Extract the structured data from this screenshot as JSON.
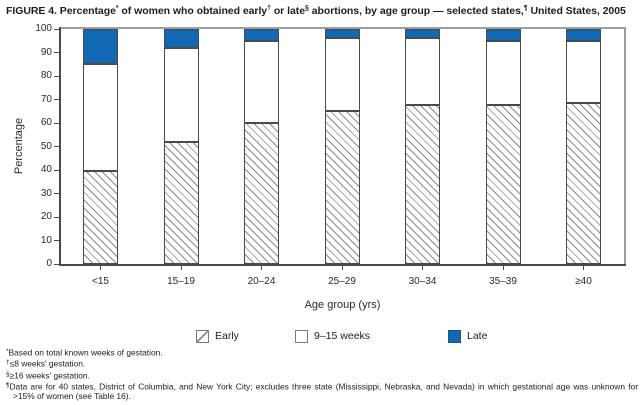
{
  "figure": {
    "title_parts": {
      "prefix": "FIGURE 4. Percentage",
      "sup1": "*",
      "mid1": " of women who obtained early",
      "sup2": "†",
      "mid2": " or late",
      "sup3": "§",
      "mid3": " abortions, by age group — selected states,",
      "sup4": "¶",
      "suffix": " United States, 2005"
    }
  },
  "chart_data": {
    "type": "bar",
    "stacked": true,
    "title": "FIGURE 4. Percentage* of women who obtained early† or late§ abortions, by age group — selected states,¶ United States, 2005",
    "categories": [
      "<15",
      "15–19",
      "20–24",
      "25–29",
      "30–34",
      "35–39",
      "≥40"
    ],
    "series": [
      {
        "name": "Early",
        "style": "hatched",
        "values": [
          39.5,
          52,
          60,
          65,
          67.5,
          67.5,
          68.5
        ]
      },
      {
        "name": "9–15 weeks",
        "style": "white",
        "values": [
          45.5,
          40,
          35,
          31,
          28.5,
          27.5,
          26.5
        ]
      },
      {
        "name": "Late",
        "style": "solid",
        "color": "#1268b2",
        "values": [
          15,
          8,
          5,
          4,
          4,
          5,
          5
        ]
      }
    ],
    "xlabel": "Age group (yrs)",
    "ylabel": "Percentage",
    "ylim": [
      0,
      100
    ],
    "yticks": [
      0,
      10,
      20,
      30,
      40,
      50,
      60,
      70,
      80,
      90,
      100
    ],
    "grid": false,
    "legend_position": "bottom"
  },
  "legend": {
    "items": [
      {
        "label": "Early",
        "swatch": "hatched"
      },
      {
        "label": "9–15 weeks",
        "swatch": "white"
      },
      {
        "label": "Late",
        "swatch": "blue"
      }
    ]
  },
  "footnotes": [
    {
      "marker": "*",
      "text": "Based on total known weeks of gestation."
    },
    {
      "marker": "†",
      "text": "≤8 weeks' gestation."
    },
    {
      "marker": "§",
      "text": "≥16 weeks' gestation."
    },
    {
      "marker": "¶",
      "text": "Data are for 40 states, District of Columbia, and New York City; excludes three state (Mississippi, Nebraska, and Nevada) in which gestational age was unknown for >15% of women (see Table 16)."
    }
  ],
  "colors": {
    "late_blue": "#1268b2",
    "axis_dark": "#4a4a4a",
    "frame_gray": "#9e9e9e",
    "hatch_gray": "#8a8a8a"
  }
}
